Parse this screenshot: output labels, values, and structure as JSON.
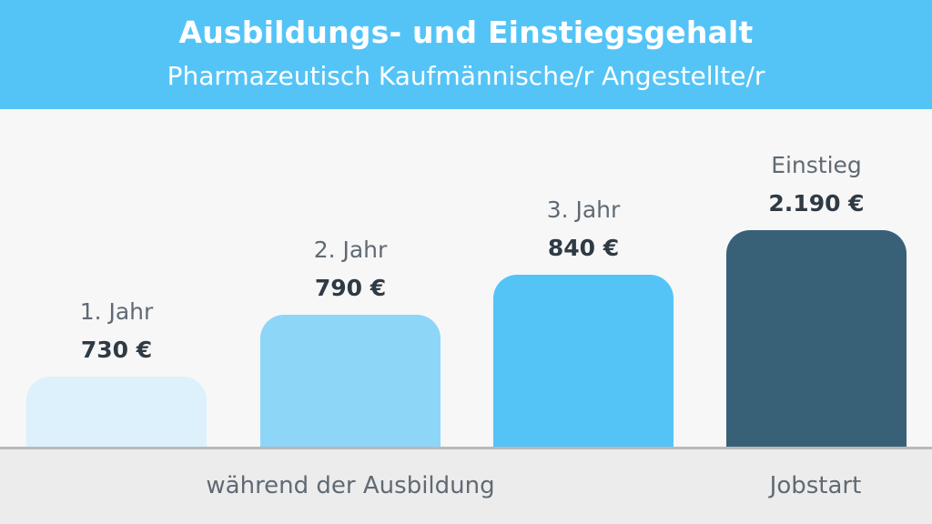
{
  "chart_data": {
    "type": "bar",
    "title": "Ausbildungs- und Einstiegsgehalt",
    "subtitle": "Pharmazeutisch Kaufmännische/r Angestellte/r",
    "categories": [
      "1. Jahr",
      "2. Jahr",
      "3. Jahr",
      "Einstieg"
    ],
    "values": [
      730,
      790,
      840,
      2190
    ],
    "value_labels": [
      "730 €",
      "790 €",
      "840 €",
      "2.190 €"
    ],
    "colors": [
      "#dcf1fc",
      "#8dd6f8",
      "#54c4f7",
      "#386178"
    ],
    "groups": [
      {
        "label": "während der Ausbildung"
      },
      {
        "label": "Jobstart"
      }
    ]
  }
}
